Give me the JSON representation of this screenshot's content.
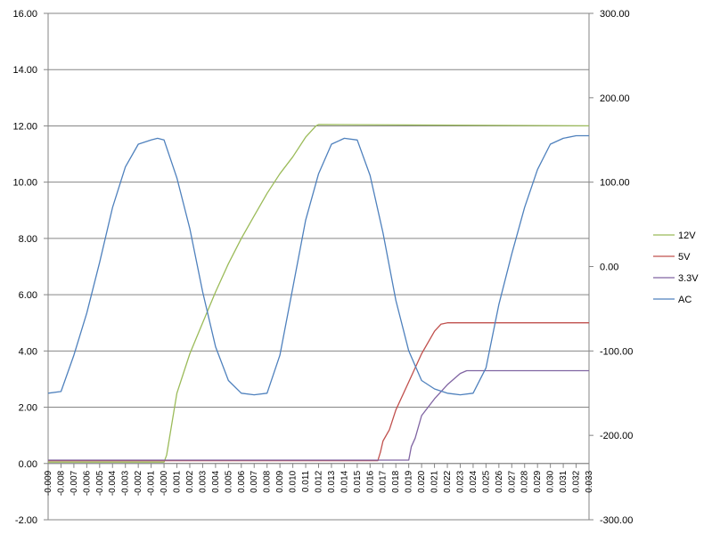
{
  "chart_data": {
    "type": "line",
    "title": "",
    "xlabel": "",
    "ylabel": "",
    "y2label": "",
    "xlim": [
      -0.009,
      0.033
    ],
    "ylim": [
      -2,
      16
    ],
    "y2lim": [
      -300,
      300
    ],
    "grid": "horizontal",
    "legend_position": "right",
    "x_ticks": [
      "-0.009",
      "-0.008",
      "-0.007",
      "-0.006",
      "-0.005",
      "-0.004",
      "-0.003",
      "-0.002",
      "-0.001",
      "-0.000",
      "0.001",
      "0.002",
      "0.003",
      "0.004",
      "0.005",
      "0.006",
      "0.007",
      "0.008",
      "0.009",
      "0.010",
      "0.011",
      "0.012",
      "0.013",
      "0.014",
      "0.015",
      "0.016",
      "0.017",
      "0.018",
      "0.019",
      "0.020",
      "0.021",
      "0.022",
      "0.023",
      "0.024",
      "0.025",
      "0.026",
      "0.027",
      "0.028",
      "0.029",
      "0.030",
      "0.031",
      "0.032",
      "0.033"
    ],
    "y_ticks": [
      "-2.00",
      "0.00",
      "2.00",
      "4.00",
      "6.00",
      "8.00",
      "10.00",
      "12.00",
      "14.00",
      "16.00"
    ],
    "y2_ticks": [
      "-300.00",
      "-200.00",
      "-100.00",
      "0.00",
      "100.00",
      "200.00",
      "300.00"
    ],
    "series": [
      {
        "name": "12V",
        "color": "#9bbb59",
        "axis": "left",
        "x": [
          -0.009,
          0.0,
          0.0002,
          0.001,
          0.002,
          0.003,
          0.004,
          0.005,
          0.006,
          0.007,
          0.008,
          0.009,
          0.01,
          0.011,
          0.0118,
          0.012,
          0.033
        ],
        "y": [
          0.05,
          0.05,
          0.3,
          2.5,
          3.9,
          5.0,
          6.1,
          7.1,
          8.0,
          8.8,
          9.6,
          10.3,
          10.9,
          11.6,
          12.0,
          12.05,
          12.0
        ]
      },
      {
        "name": "5V",
        "color": "#c0504d",
        "axis": "left",
        "x": [
          -0.009,
          0.0166,
          0.0168,
          0.017,
          0.0175,
          0.018,
          0.019,
          0.02,
          0.021,
          0.0215,
          0.022,
          0.033
        ],
        "y": [
          0.1,
          0.1,
          0.4,
          0.8,
          1.2,
          1.9,
          2.9,
          3.9,
          4.7,
          4.95,
          5.0,
          5.0
        ]
      },
      {
        "name": "3.3V",
        "color": "#8064a2",
        "axis": "left",
        "x": [
          -0.009,
          0.019,
          0.0192,
          0.0195,
          0.02,
          0.021,
          0.022,
          0.023,
          0.0235,
          0.033
        ],
        "y": [
          0.12,
          0.12,
          0.6,
          0.9,
          1.7,
          2.3,
          2.8,
          3.2,
          3.3,
          3.3
        ]
      },
      {
        "name": "AC",
        "color": "#4f81bd",
        "axis": "right",
        "x": [
          -0.009,
          -0.008,
          -0.007,
          -0.006,
          -0.005,
          -0.004,
          -0.003,
          -0.002,
          -0.001,
          -0.0005,
          0.0,
          0.001,
          0.002,
          0.003,
          0.004,
          0.005,
          0.006,
          0.007,
          0.008,
          0.009,
          0.01,
          0.011,
          0.012,
          0.013,
          0.014,
          0.015,
          0.016,
          0.017,
          0.018,
          0.019,
          0.02,
          0.021,
          0.022,
          0.023,
          0.024,
          0.025,
          0.026,
          0.027,
          0.028,
          0.029,
          0.03,
          0.031,
          0.032,
          0.033
        ],
        "y": [
          -150,
          -148,
          -105,
          -55,
          5,
          70,
          118,
          145,
          150,
          152,
          150,
          105,
          45,
          -30,
          -95,
          -135,
          -150,
          -152,
          -150,
          -105,
          -25,
          55,
          110,
          145,
          152,
          150,
          108,
          40,
          -40,
          -100,
          -135,
          -145,
          -150,
          -152,
          -150,
          -120,
          -45,
          15,
          70,
          115,
          145,
          152,
          155,
          155
        ]
      }
    ]
  }
}
